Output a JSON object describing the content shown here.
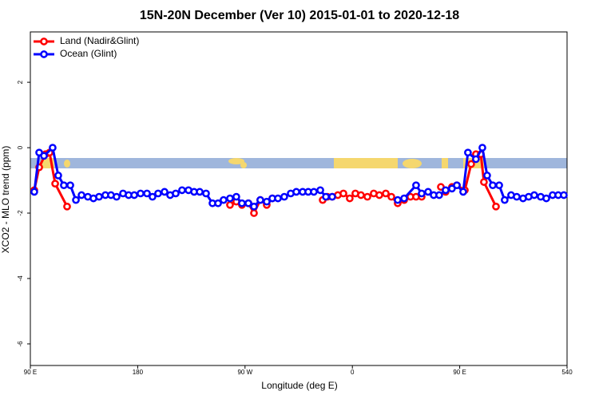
{
  "chart_data": {
    "type": "line",
    "title": "15N-20N December (Ver 10)   2015-01-01 to 2020-12-18",
    "xlabel": "Longitude (deg E)",
    "ylabel": "XCO2 - MLO trend (ppm)",
    "xlim": [
      90,
      540
    ],
    "ylim": [
      -6.66,
      3.54
    ],
    "xticks": [
      {
        "value": 90,
        "label": "90 E"
      },
      180,
      {
        "value": 270,
        "label": "90 W"
      },
      {
        "value": 360,
        "label": "0"
      },
      {
        "value": 450,
        "label": "90 E"
      },
      540
    ],
    "yticks": [
      -6,
      -4,
      -2,
      0,
      2
    ],
    "legend": "top-left",
    "series": [
      {
        "name": "Land (Nadir&Glint)",
        "color": "#ff0000",
        "x": [
          93.3,
          97.4,
          102.7,
          106.1,
          110.8,
          120.8,
          null,
          257.4,
          262.7,
          267.4,
          272.8,
          277.5,
          282.8,
          288.2,
          292.9,
          null,
          335.1,
          339.1,
          343.1,
          347.8,
          352.5,
          357.8,
          362.5,
          367.2,
          372.6,
          377.9,
          382.6,
          388.0,
          392.7,
          398.0,
          403.4,
          408.7,
          413.4,
          418.1,
          null,
          434.2,
          438.2,
          443.5,
          447.6,
          454.3,
          459.6,
          463.6,
          467.7,
          470.3,
          480.4
        ],
        "values": [
          -1.3,
          -0.6,
          -0.2,
          -0.15,
          -1.1,
          -1.8,
          null,
          -1.75,
          -1.65,
          -1.75,
          -1.7,
          -2.0,
          -1.6,
          -1.75,
          -1.55,
          null,
          -1.6,
          -1.5,
          -1.5,
          -1.45,
          -1.4,
          -1.55,
          -1.4,
          -1.45,
          -1.5,
          -1.4,
          -1.45,
          -1.4,
          -1.5,
          -1.7,
          -1.6,
          -1.5,
          -1.5,
          -1.5,
          null,
          -1.2,
          -1.35,
          -1.2,
          -1.15,
          -1.3,
          -0.5,
          -0.2,
          -0.2,
          -1.05,
          -1.8
        ]
      },
      {
        "name": "Ocean (Glint)",
        "color": "#0000ff",
        "x": [
          93.3,
          97.4,
          101.4,
          108.7,
          113.4,
          118.1,
          123.5,
          128.2,
          132.9,
          138.2,
          142.9,
          147.6,
          152.9,
          157.6,
          162.3,
          167.7,
          172.4,
          177.1,
          182.4,
          187.8,
          192.4,
          197.1,
          202.5,
          207.2,
          211.9,
          217.2,
          222.6,
          227.3,
          232.0,
          237.3,
          242.7,
          247.4,
          252.0,
          257.4,
          262.7,
          267.4,
          272.8,
          277.5,
          282.8,
          288.2,
          292.9,
          297.6,
          302.9,
          308.3,
          313.0,
          318.3,
          323.0,
          327.7,
          333.1,
          337.8,
          343.1,
          null,
          398.0,
          403.4,
          413.4,
          418.1,
          423.5,
          428.2,
          432.8,
          438.2,
          443.5,
          447.6,
          452.9,
          456.9,
          463.6,
          469.0,
          473.0,
          477.7,
          483.1,
          487.7,
          493.1,
          497.8,
          503.1,
          507.8,
          512.5,
          517.9,
          522.6,
          527.9,
          532.6,
          537.3
        ],
        "values": [
          -1.35,
          -0.15,
          -0.25,
          0.0,
          -0.85,
          -1.15,
          -1.15,
          -1.6,
          -1.45,
          -1.5,
          -1.55,
          -1.5,
          -1.45,
          -1.45,
          -1.5,
          -1.4,
          -1.45,
          -1.45,
          -1.4,
          -1.4,
          -1.5,
          -1.4,
          -1.35,
          -1.45,
          -1.4,
          -1.3,
          -1.3,
          -1.35,
          -1.35,
          -1.4,
          -1.7,
          -1.7,
          -1.6,
          -1.55,
          -1.5,
          -1.7,
          -1.7,
          -1.8,
          -1.6,
          -1.65,
          -1.55,
          -1.55,
          -1.5,
          -1.4,
          -1.35,
          -1.35,
          -1.35,
          -1.35,
          -1.3,
          -1.5,
          -1.5,
          null,
          -1.6,
          -1.55,
          -1.15,
          -1.4,
          -1.35,
          -1.45,
          -1.45,
          -1.3,
          -1.25,
          -1.15,
          -1.35,
          -0.15,
          -0.35,
          0.0,
          -0.85,
          -1.15,
          -1.15,
          -1.6,
          -1.45,
          -1.5,
          -1.55,
          -1.5,
          -1.45,
          -1.5,
          -1.55,
          -1.45,
          -1.45,
          -1.45
        ]
      }
    ]
  }
}
